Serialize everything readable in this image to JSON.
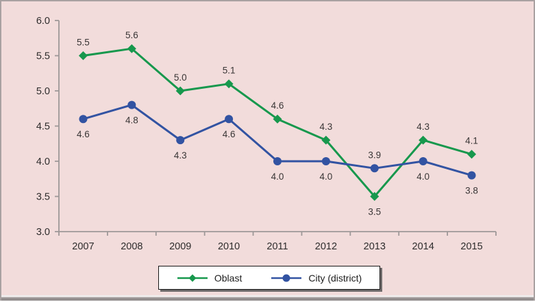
{
  "window": {
    "background_color": "#f2dcdb",
    "frame_border_color": "#a9a1a1"
  },
  "chart_data": {
    "type": "line",
    "title": "",
    "xlabel": "",
    "ylabel": "",
    "categories": [
      "2007",
      "2008",
      "2009",
      "2010",
      "2011",
      "2012",
      "2013",
      "2014",
      "2015"
    ],
    "series": [
      {
        "name": "Oblast",
        "color": "#17984d",
        "marker": "diamond",
        "values": [
          5.5,
          5.6,
          5.0,
          5.1,
          4.6,
          4.3,
          3.5,
          4.3,
          4.1
        ],
        "labels": [
          "5.5",
          "5.6",
          "5.0",
          "5.1",
          "4.6",
          "4.3",
          "3.5",
          "4.3",
          "4.1"
        ],
        "label_side": [
          "above",
          "above",
          "above",
          "above",
          "above",
          "above",
          "below",
          "above",
          "above"
        ]
      },
      {
        "name": "City (district)",
        "color": "#3253a2",
        "marker": "circle",
        "values": [
          4.6,
          4.8,
          4.3,
          4.6,
          4.0,
          4.0,
          3.9,
          4.0,
          3.8
        ],
        "labels": [
          "4.6",
          "4.8",
          "4.3",
          "4.6",
          "4.0",
          "4.0",
          "3.9",
          "4.0",
          "3.8"
        ],
        "label_side": [
          "below",
          "below",
          "below",
          "below",
          "below",
          "below",
          "above",
          "below",
          "below"
        ]
      }
    ],
    "ylim": [
      3.0,
      6.0
    ],
    "ytick_step": 0.5,
    "ytick_labels": [
      "3.0",
      "3.5",
      "4.0",
      "4.5",
      "5.0",
      "5.5",
      "6.0"
    ],
    "grid": false,
    "legend_position": "bottom",
    "axis_color": "#9e9898",
    "text_color": "#2e2c2c",
    "data_label_color": "#393535"
  },
  "legend": {
    "items": [
      {
        "label": "Oblast"
      },
      {
        "label": "City (district)"
      }
    ]
  }
}
